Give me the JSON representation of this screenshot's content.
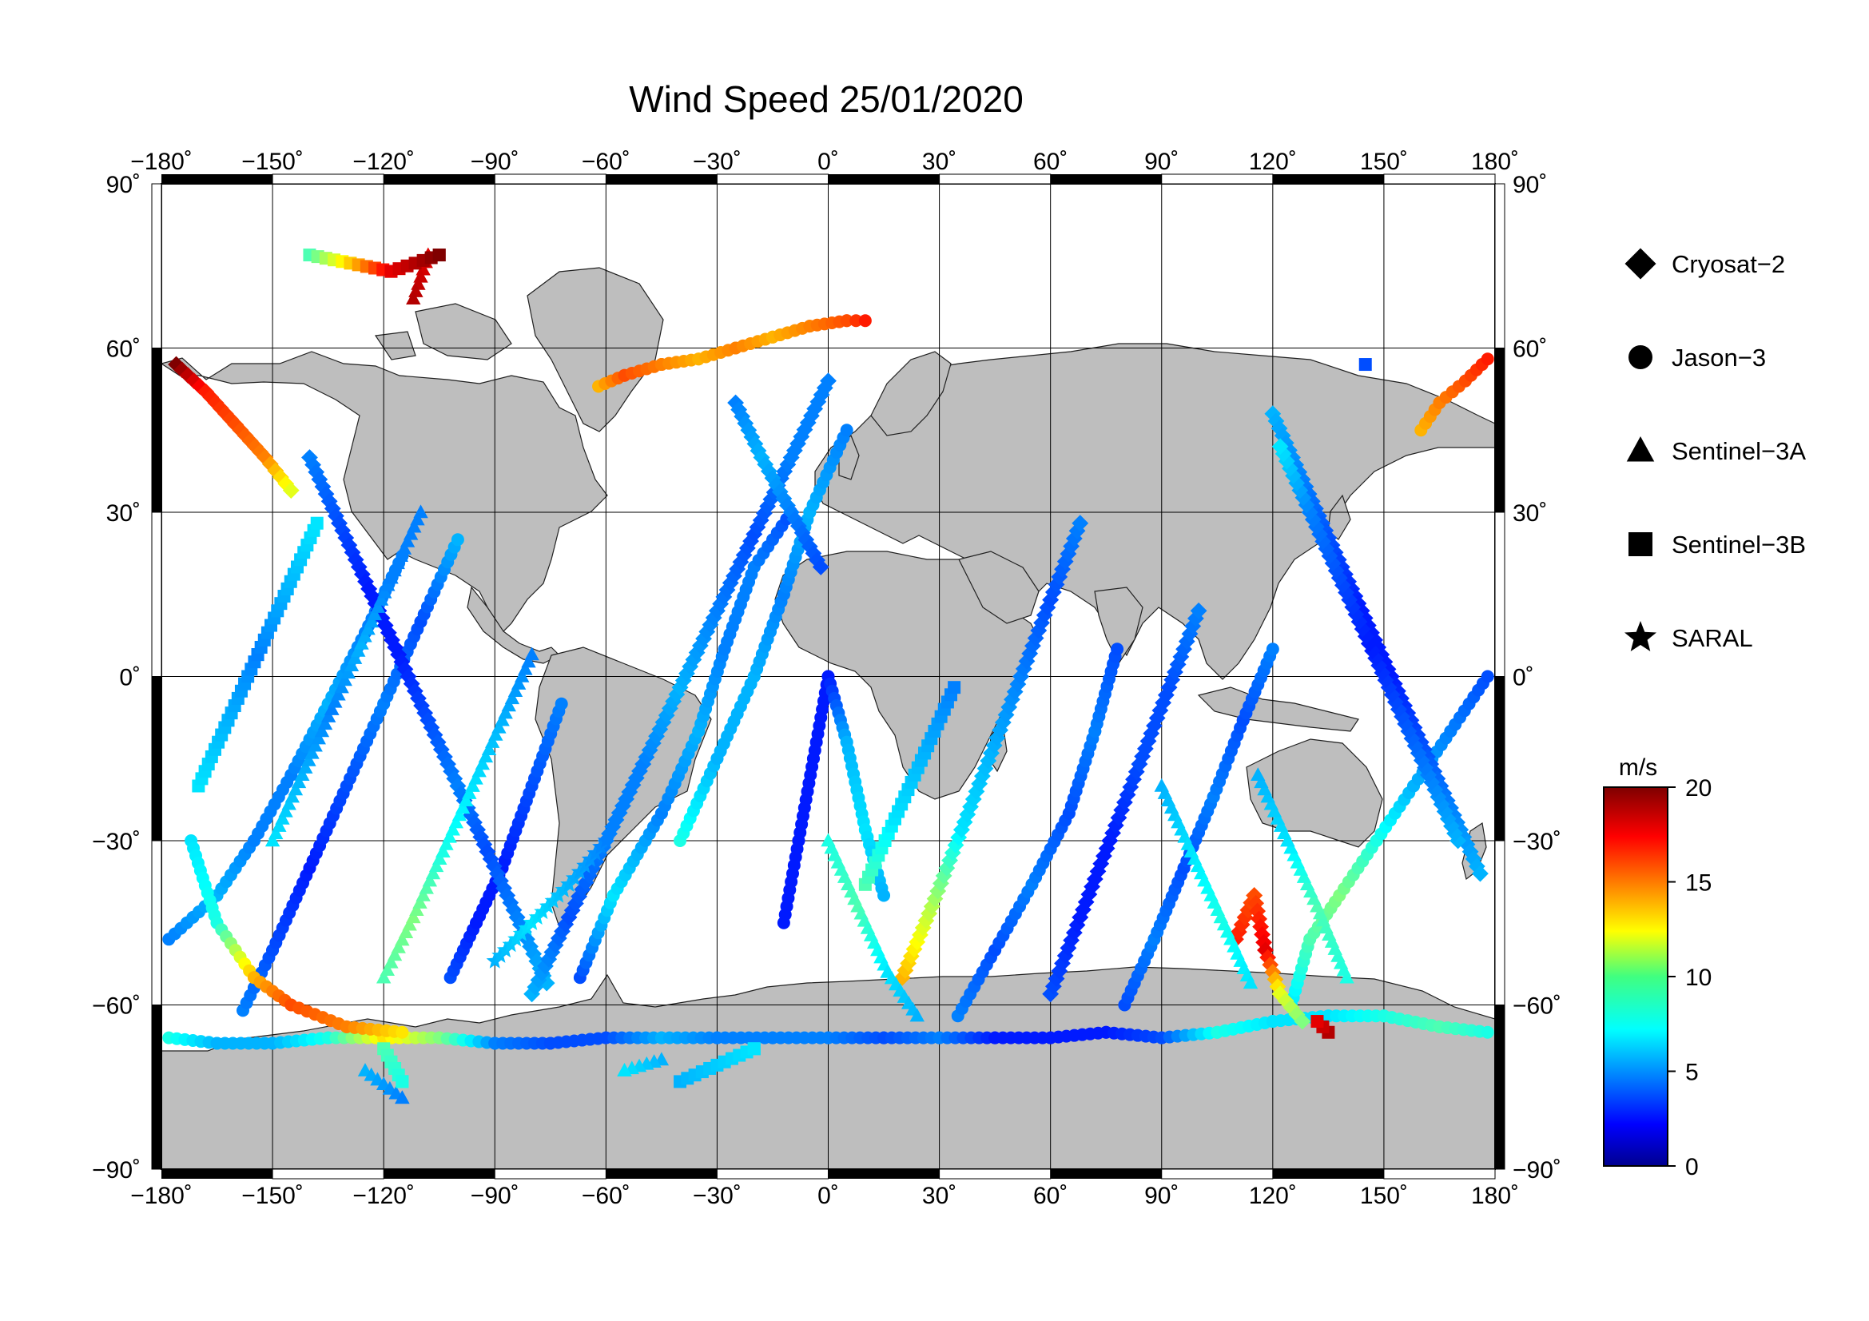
{
  "title": "Wind Speed 25/01/2020",
  "chart_data": {
    "type": "scatter",
    "title": "Wind Speed 25/01/2020",
    "projection": "equirectangular",
    "xlim": [
      -180,
      180
    ],
    "ylim": [
      -90,
      90
    ],
    "grid": true,
    "x_ticks": [
      -180,
      -150,
      -120,
      -90,
      -60,
      -30,
      0,
      30,
      60,
      90,
      120,
      150,
      180
    ],
    "y_ticks": [
      -90,
      -60,
      -30,
      0,
      30,
      60,
      90
    ],
    "x_tick_labels": [
      "−180˚",
      "−150˚",
      "−120˚",
      "−90˚",
      "−60˚",
      "−30˚",
      "0˚",
      "30˚",
      "60˚",
      "90˚",
      "120˚",
      "150˚",
      "180˚"
    ],
    "y_tick_labels": [
      "−90˚",
      "−60˚",
      "−30˚",
      "0˚",
      "30˚",
      "60˚",
      "90˚"
    ],
    "legend": [
      {
        "name": "Cryosat−2",
        "marker": "diamond"
      },
      {
        "name": "Jason−3",
        "marker": "circle"
      },
      {
        "name": "Sentinel−3A",
        "marker": "triangle"
      },
      {
        "name": "Sentinel−3B",
        "marker": "square"
      },
      {
        "name": "SARAL",
        "marker": "star"
      }
    ],
    "legend_position": "right",
    "colorbar": {
      "unit": "m/s",
      "min": 0,
      "max": 20,
      "tick_values": [
        0,
        5,
        10,
        15,
        20
      ],
      "tick_labels": [
        "0",
        "5",
        "10",
        "15",
        "20"
      ],
      "colormap": "jet"
    },
    "tracks": [
      {
        "marker": "circle",
        "points": [
          [
            -178,
            -66,
            8
          ],
          [
            -165,
            -67,
            6
          ],
          [
            -150,
            -67,
            6
          ],
          [
            -135,
            -66,
            8
          ],
          [
            -120,
            -66,
            13
          ],
          [
            -105,
            -66,
            10
          ],
          [
            -90,
            -67,
            5
          ],
          [
            -75,
            -67,
            4
          ],
          [
            -60,
            -66,
            4
          ],
          [
            -45,
            -66,
            6
          ],
          [
            -30,
            -66,
            5
          ],
          [
            -15,
            -66,
            5
          ],
          [
            0,
            -66,
            5
          ],
          [
            15,
            -66,
            4
          ],
          [
            30,
            -66,
            5
          ],
          [
            45,
            -66,
            3
          ],
          [
            60,
            -66,
            3
          ],
          [
            75,
            -65,
            3
          ],
          [
            90,
            -66,
            4
          ],
          [
            105,
            -65,
            8
          ],
          [
            120,
            -63,
            7
          ],
          [
            135,
            -62,
            7
          ],
          [
            150,
            -62,
            8
          ],
          [
            165,
            -64,
            9
          ],
          [
            178,
            -65,
            8
          ]
        ]
      },
      {
        "marker": "circle",
        "points": [
          [
            -178,
            -48,
            5
          ],
          [
            -165,
            -40,
            6
          ],
          [
            -155,
            -30,
            5
          ],
          [
            -145,
            -18,
            5
          ],
          [
            -135,
            -5,
            6
          ],
          [
            -125,
            8,
            5
          ],
          [
            -115,
            22,
            5
          ]
        ]
      },
      {
        "marker": "circle",
        "points": [
          [
            -158,
            -61,
            5
          ],
          [
            -150,
            -50,
            4
          ],
          [
            -140,
            -35,
            3
          ],
          [
            -130,
            -20,
            4
          ],
          [
            -120,
            -5,
            5
          ],
          [
            -110,
            10,
            4
          ],
          [
            -100,
            25,
            6
          ]
        ]
      },
      {
        "marker": "circle",
        "points": [
          [
            -102,
            -55,
            4
          ],
          [
            -95,
            -45,
            3
          ],
          [
            -88,
            -35,
            3
          ],
          [
            -80,
            -20,
            4
          ],
          [
            -72,
            -5,
            5
          ]
        ]
      },
      {
        "marker": "circle",
        "points": [
          [
            -67,
            -55,
            4
          ],
          [
            -58,
            -40,
            7
          ],
          [
            -45,
            -25,
            5
          ],
          [
            -35,
            -10,
            6
          ],
          [
            -28,
            5,
            5
          ],
          [
            -20,
            20,
            5
          ],
          [
            -10,
            30,
            4
          ]
        ]
      },
      {
        "marker": "circle",
        "points": [
          [
            -62,
            53,
            14
          ],
          [
            -55,
            55,
            16
          ],
          [
            -45,
            57,
            15
          ],
          [
            -35,
            58,
            14
          ],
          [
            -25,
            60,
            15
          ],
          [
            -15,
            62,
            14
          ],
          [
            -5,
            64,
            15
          ],
          [
            5,
            65,
            16
          ],
          [
            10,
            65,
            17
          ]
        ]
      },
      {
        "marker": "circle",
        "points": [
          [
            -40,
            -30,
            8
          ],
          [
            -30,
            -15,
            6
          ],
          [
            -20,
            0,
            6
          ],
          [
            -12,
            15,
            5
          ],
          [
            -5,
            30,
            6
          ],
          [
            5,
            45,
            5
          ]
        ]
      },
      {
        "marker": "circle",
        "points": [
          [
            -12,
            -45,
            3
          ],
          [
            -8,
            -30,
            3
          ],
          [
            -4,
            -15,
            3
          ],
          [
            0,
            0,
            3
          ],
          [
            5,
            -12,
            6
          ],
          [
            10,
            -28,
            7
          ],
          [
            15,
            -40,
            6
          ]
        ]
      },
      {
        "marker": "circle",
        "points": [
          [
            35,
            -62,
            5
          ],
          [
            45,
            -50,
            4
          ],
          [
            55,
            -38,
            5
          ],
          [
            65,
            -25,
            4
          ],
          [
            72,
            -10,
            5
          ],
          [
            78,
            5,
            4
          ]
        ]
      },
      {
        "marker": "circle",
        "points": [
          [
            80,
            -60,
            4
          ],
          [
            88,
            -48,
            5
          ],
          [
            96,
            -35,
            4
          ],
          [
            104,
            -22,
            5
          ],
          [
            112,
            -8,
            4
          ],
          [
            120,
            5,
            5
          ]
        ]
      },
      {
        "marker": "circle",
        "points": [
          [
            160,
            45,
            14
          ],
          [
            165,
            50,
            15
          ],
          [
            172,
            54,
            16
          ],
          [
            178,
            58,
            17
          ]
        ]
      },
      {
        "marker": "circle",
        "points": [
          [
            125,
            -60,
            7
          ],
          [
            130,
            -48,
            9
          ],
          [
            138,
            -40,
            10
          ],
          [
            148,
            -30,
            8
          ],
          [
            158,
            -20,
            6
          ],
          [
            168,
            -10,
            5
          ],
          [
            178,
            0,
            4
          ]
        ]
      },
      {
        "marker": "circle",
        "points": [
          [
            -172,
            -30,
            7
          ],
          [
            -165,
            -45,
            8
          ],
          [
            -155,
            -55,
            14
          ],
          [
            -145,
            -60,
            16
          ],
          [
            -130,
            -64,
            15
          ],
          [
            -115,
            -65,
            13
          ]
        ]
      },
      {
        "marker": "diamond",
        "points": [
          [
            -176,
            57,
            20
          ],
          [
            -168,
            52,
            17
          ],
          [
            -160,
            46,
            16
          ],
          [
            -152,
            40,
            15
          ],
          [
            -145,
            34,
            12
          ]
        ]
      },
      {
        "marker": "diamond",
        "points": [
          [
            -140,
            40,
            5
          ],
          [
            -132,
            28,
            4
          ],
          [
            -124,
            16,
            3
          ],
          [
            -116,
            4,
            3
          ],
          [
            -108,
            -8,
            4
          ],
          [
            -100,
            -20,
            5
          ],
          [
            -92,
            -32,
            4
          ],
          [
            -84,
            -44,
            5
          ],
          [
            -76,
            -56,
            6
          ]
        ]
      },
      {
        "marker": "diamond",
        "points": [
          [
            -80,
            -58,
            6
          ],
          [
            -70,
            -44,
            4
          ],
          [
            -60,
            -30,
            5
          ],
          [
            -50,
            -16,
            5
          ],
          [
            -40,
            -2,
            6
          ],
          [
            -30,
            12,
            5
          ],
          [
            -20,
            26,
            4
          ],
          [
            -10,
            40,
            5
          ],
          [
            0,
            54,
            5
          ]
        ]
      },
      {
        "marker": "diamond",
        "points": [
          [
            20,
            -55,
            14
          ],
          [
            28,
            -42,
            11
          ],
          [
            36,
            -28,
            7
          ],
          [
            44,
            -14,
            6
          ],
          [
            52,
            0,
            5
          ],
          [
            60,
            14,
            4
          ],
          [
            68,
            28,
            5
          ]
        ]
      },
      {
        "marker": "diamond",
        "points": [
          [
            60,
            -58,
            4
          ],
          [
            68,
            -44,
            3
          ],
          [
            76,
            -30,
            3
          ],
          [
            84,
            -16,
            4
          ],
          [
            92,
            -2,
            4
          ],
          [
            100,
            12,
            5
          ]
        ]
      },
      {
        "marker": "diamond",
        "points": [
          [
            110,
            -48,
            17
          ],
          [
            115,
            -40,
            16
          ],
          [
            118,
            -50,
            18
          ],
          [
            122,
            -58,
            12
          ],
          [
            128,
            -63,
            10
          ]
        ]
      },
      {
        "marker": "diamond",
        "points": [
          [
            120,
            48,
            6
          ],
          [
            128,
            36,
            5
          ],
          [
            136,
            24,
            4
          ],
          [
            144,
            12,
            3
          ],
          [
            152,
            0,
            3
          ],
          [
            160,
            -12,
            4
          ],
          [
            168,
            -24,
            5
          ],
          [
            176,
            -36,
            6
          ]
        ]
      },
      {
        "marker": "diamond",
        "points": [
          [
            170,
            -30,
            6
          ],
          [
            162,
            -18,
            5
          ],
          [
            154,
            -6,
            4
          ],
          [
            146,
            6,
            3
          ],
          [
            138,
            18,
            4
          ],
          [
            130,
            30,
            5
          ],
          [
            122,
            42,
            7
          ]
        ]
      },
      {
        "marker": "diamond",
        "points": [
          [
            -25,
            50,
            5
          ],
          [
            -18,
            40,
            6
          ],
          [
            -10,
            30,
            5
          ],
          [
            -2,
            20,
            4
          ]
        ]
      },
      {
        "marker": "triangle",
        "points": [
          [
            -150,
            -30,
            7
          ],
          [
            -142,
            -18,
            6
          ],
          [
            -134,
            -6,
            5
          ],
          [
            -126,
            6,
            6
          ],
          [
            -118,
            18,
            5
          ],
          [
            -110,
            30,
            5
          ]
        ]
      },
      {
        "marker": "triangle",
        "points": [
          [
            -120,
            -55,
            9
          ],
          [
            -112,
            -44,
            10
          ],
          [
            -104,
            -32,
            8
          ],
          [
            -96,
            -20,
            7
          ],
          [
            -88,
            -8,
            6
          ],
          [
            -80,
            4,
            5
          ]
        ]
      },
      {
        "marker": "triangle",
        "points": [
          [
            -45,
            -70,
            6
          ],
          [
            -55,
            -72,
            7
          ],
          [
            -125,
            -72,
            6
          ],
          [
            -115,
            -77,
            5
          ],
          [
            -108,
            77,
            18
          ],
          [
            -112,
            69,
            19
          ]
        ]
      },
      {
        "marker": "triangle",
        "points": [
          [
            0,
            -30,
            8
          ],
          [
            8,
            -42,
            9
          ],
          [
            16,
            -54,
            7
          ],
          [
            24,
            -62,
            6
          ]
        ]
      },
      {
        "marker": "triangle",
        "points": [
          [
            90,
            -20,
            6
          ],
          [
            98,
            -32,
            7
          ],
          [
            106,
            -44,
            8
          ],
          [
            114,
            -56,
            7
          ]
        ]
      },
      {
        "marker": "triangle",
        "points": [
          [
            140,
            -55,
            8
          ],
          [
            132,
            -42,
            9
          ],
          [
            124,
            -30,
            7
          ],
          [
            116,
            -18,
            6
          ]
        ]
      },
      {
        "marker": "square",
        "points": [
          [
            -140,
            77,
            9
          ],
          [
            -118,
            74,
            18
          ],
          [
            -105,
            77,
            20
          ],
          [
            -120,
            -68,
            9
          ],
          [
            -115,
            -74,
            8
          ],
          [
            -40,
            -74,
            6
          ],
          [
            -20,
            -68,
            7
          ],
          [
            145,
            57,
            4
          ],
          [
            135,
            -65,
            19
          ],
          [
            132,
            -63,
            18
          ]
        ]
      },
      {
        "marker": "square",
        "points": [
          [
            -170,
            -20,
            7
          ],
          [
            -162,
            -8,
            6
          ],
          [
            -154,
            4,
            5
          ],
          [
            -146,
            16,
            6
          ],
          [
            -138,
            28,
            7
          ]
        ]
      },
      {
        "marker": "square",
        "points": [
          [
            10,
            -38,
            9
          ],
          [
            18,
            -26,
            7
          ],
          [
            26,
            -14,
            6
          ],
          [
            34,
            -2,
            5
          ]
        ]
      },
      {
        "marker": "star",
        "points": [
          [
            -90,
            -52,
            6
          ],
          [
            -80,
            -45,
            7
          ],
          [
            -70,
            -38,
            6
          ],
          [
            -60,
            -30,
            5
          ]
        ]
      }
    ]
  }
}
